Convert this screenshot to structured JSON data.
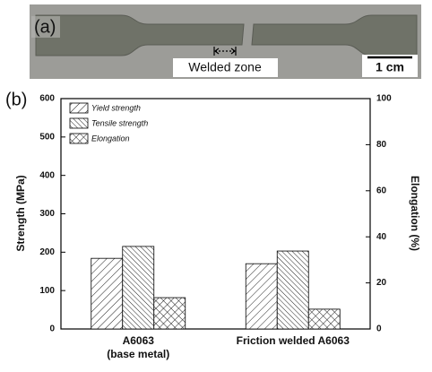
{
  "photo": {
    "label": "(a)",
    "welded_zone": "Welded zone",
    "scale_bar": "1 cm"
  },
  "chart_data": {
    "type": "bar",
    "panel_label": "(b)",
    "y_label": "Strength (MPa)",
    "y2_label": "Elongation (%)",
    "categories": [
      [
        "A6063",
        "(base metal)"
      ],
      [
        "Friction welded A6063"
      ]
    ],
    "series": [
      {
        "name": "Yield strength",
        "hatch": "/",
        "values": [
          184,
          170
        ]
      },
      {
        "name": "Tensile strength",
        "hatch": "\\",
        "values": [
          215,
          203
        ]
      },
      {
        "name": "Elongation",
        "hatch": "x",
        "axis": "y2",
        "values": [
          13.6,
          8.6
        ]
      }
    ],
    "ylim": [
      0,
      600
    ],
    "yticks": [
      0,
      100,
      200,
      300,
      400,
      500,
      600
    ],
    "y2lim": [
      0,
      100
    ],
    "y2ticks": [
      0,
      20,
      40,
      60,
      80,
      100
    ],
    "legend": "upper left"
  }
}
